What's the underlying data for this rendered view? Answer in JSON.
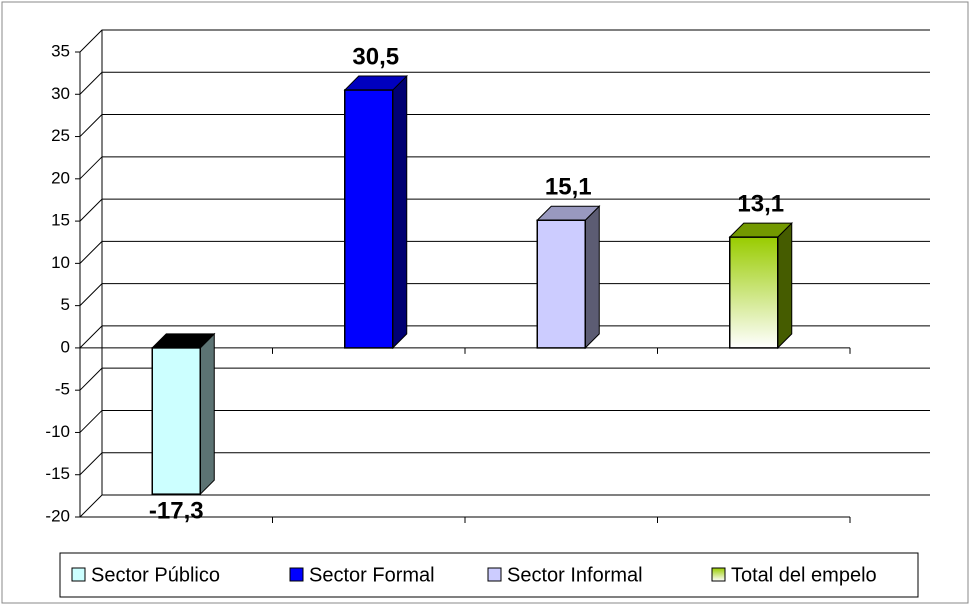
{
  "chart_data": {
    "type": "bar3d",
    "categories": [
      null
    ],
    "series": [
      {
        "name": "Sector Público",
        "color": "#ccffff",
        "values": [
          -17.3
        ],
        "value_labels": [
          "-17,3"
        ]
      },
      {
        "name": "Sector Formal",
        "color": "#0000ff",
        "values": [
          30.5
        ],
        "value_labels": [
          "30,5"
        ]
      },
      {
        "name": "Sector Informal",
        "color": "#ccccff",
        "values": [
          15.1
        ],
        "value_labels": [
          "15,1"
        ]
      },
      {
        "name": "Total del empelo",
        "color": "#99cc00",
        "gradient": true,
        "values": [
          13.1
        ],
        "value_labels": [
          "13,1"
        ]
      }
    ],
    "ylim": [
      -20,
      35
    ],
    "yticks": [
      -20,
      -15,
      -10,
      -5,
      0,
      5,
      10,
      15,
      20,
      25,
      30,
      35
    ],
    "grid": true,
    "legend": "bottom"
  }
}
